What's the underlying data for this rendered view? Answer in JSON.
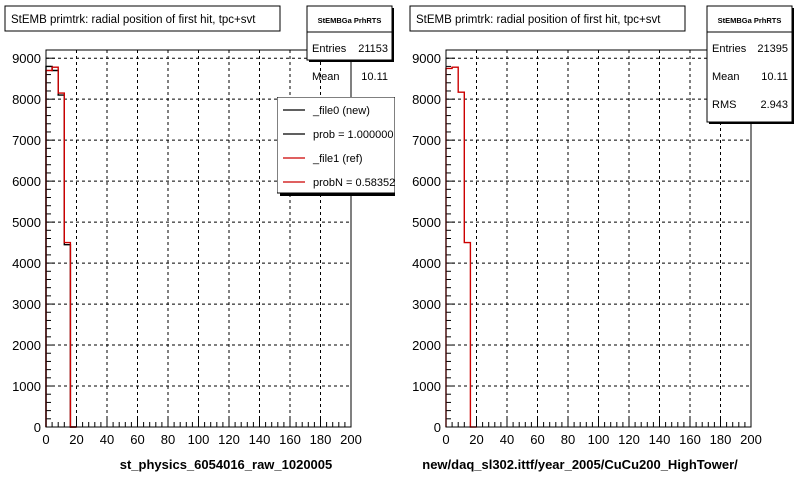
{
  "chart_data": [
    {
      "type": "histogram",
      "title": "StEMB primtrk: radial position of first hit, tpc+svt",
      "xlabel": "st_physics_6054016_raw_1020005",
      "ylabel": "",
      "xlim": [
        0,
        200
      ],
      "ylim": [
        0,
        9200
      ],
      "x_ticks": [
        "0",
        "20",
        "40",
        "60",
        "80",
        "100",
        "120",
        "140",
        "160",
        "180",
        "200"
      ],
      "y_ticks": [
        "0",
        "1000",
        "2000",
        "3000",
        "4000",
        "5000",
        "6000",
        "7000",
        "8000",
        "9000"
      ],
      "grid": true,
      "bin_width": 4,
      "series": [
        {
          "name": "_file0 (new)",
          "color": "#000000",
          "bin_edges": [
            0,
            4,
            8,
            12,
            16,
            20
          ],
          "values": [
            8800,
            8700,
            8100,
            4450,
            0
          ]
        },
        {
          "name": "_file1 (ref)",
          "color": "#cc0000",
          "bin_edges": [
            0,
            4,
            8,
            12,
            16,
            20
          ],
          "values": [
            8700,
            8780,
            8150,
            4500,
            0
          ]
        }
      ],
      "stats_box": {
        "title": "StEMBGa PrhRTS",
        "rows": [
          {
            "label": "Entries",
            "value": "21153"
          },
          {
            "label": "Mean",
            "value": "10.11"
          }
        ]
      },
      "legend": {
        "placement": "top-right",
        "entries": [
          {
            "label": "_file0 (new)",
            "color": "#000000"
          },
          {
            "label": "prob = 1.000000",
            "color": "#000000"
          },
          {
            "label": "_file1 (ref)",
            "color": "#cc0000"
          },
          {
            "label": "probN = 0.583524",
            "color": "#cc0000"
          }
        ]
      }
    },
    {
      "type": "histogram",
      "title": "StEMB primtrk: radial position of first hit, tpc+svt",
      "xlabel": "new/daq_sl302.ittf/year_2005/CuCu200_HighTower/",
      "ylabel": "",
      "xlim": [
        0,
        200
      ],
      "ylim": [
        0,
        9200
      ],
      "x_ticks": [
        "0",
        "20",
        "40",
        "60",
        "80",
        "100",
        "120",
        "140",
        "160",
        "180",
        "200"
      ],
      "y_ticks": [
        "0",
        "1000",
        "2000",
        "3000",
        "4000",
        "5000",
        "6000",
        "7000",
        "8000",
        "9000"
      ],
      "grid": true,
      "bin_width": 4,
      "series": [
        {
          "name": "",
          "color": "#cc0000",
          "bin_edges": [
            0,
            4,
            8,
            12,
            16,
            20
          ],
          "values": [
            8750,
            8780,
            8170,
            4500,
            0
          ]
        }
      ],
      "stats_box": {
        "title": "StEMBGa PrhRTS",
        "rows": [
          {
            "label": "Entries",
            "value": "21395"
          },
          {
            "label": "Mean",
            "value": "10.11"
          },
          {
            "label": "RMS",
            "value": "2.943"
          }
        ]
      }
    }
  ]
}
